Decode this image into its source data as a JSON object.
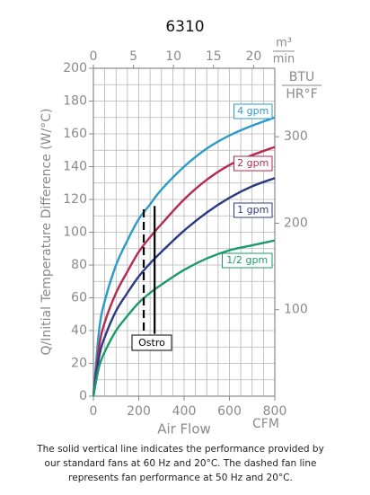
{
  "chart_data": {
    "type": "line",
    "title": "6310",
    "y_label": "Q/Initial Temperature Difference (W/°C)",
    "x_label": "Air Flow",
    "x_unit": "CFM",
    "x2_unit_top": "m³",
    "x2_unit_bottom": "min",
    "y2_unit_top": "BTU",
    "y2_unit_bottom": "HR°F",
    "x": [
      0,
      25,
      50,
      100,
      150,
      200,
      250,
      300,
      400,
      500,
      600,
      700,
      800
    ],
    "series": [
      {
        "name": "4 gpm",
        "color": "#2b9bc9",
        "values": [
          0,
          40,
          58,
          80,
          95,
          108,
          117,
          126,
          140,
          151,
          159,
          165,
          170
        ]
      },
      {
        "name": "2 gpm",
        "color": "#b62a50",
        "values": [
          0,
          30,
          45,
          63,
          76,
          88,
          97,
          105,
          120,
          132,
          141,
          147,
          152
        ]
      },
      {
        "name": "1 gpm",
        "color": "#2c3a86",
        "values": [
          0,
          24,
          36,
          52,
          63,
          73,
          81,
          88,
          101,
          112,
          121,
          128,
          133
        ]
      },
      {
        "name": "1/2 gpm",
        "color": "#1b9a6b",
        "values": [
          0,
          18,
          27,
          40,
          49,
          57,
          63,
          68,
          77,
          84,
          89,
          92,
          95
        ]
      }
    ],
    "xlim": [
      0,
      800
    ],
    "xticks": [
      0,
      200,
      400,
      600,
      800
    ],
    "ylim": [
      0,
      200
    ],
    "yticks": [
      0,
      20,
      40,
      60,
      80,
      100,
      120,
      140,
      160,
      180,
      200
    ],
    "x2lim": [
      0,
      22.65
    ],
    "x2ticks": [
      0,
      5,
      10,
      15,
      20
    ],
    "y2lim": [
      0,
      379.1
    ],
    "y2ticks": [
      100,
      200,
      300
    ],
    "xgrid": [
      0,
      50,
      100,
      150,
      200,
      250,
      300,
      350,
      400,
      450,
      500,
      550,
      600,
      650,
      700,
      750,
      800
    ],
    "ygrid": [
      0,
      10,
      20,
      30,
      40,
      50,
      60,
      70,
      80,
      90,
      100,
      110,
      120,
      130,
      140,
      150,
      160,
      170,
      180,
      190,
      200
    ],
    "reference_lines": [
      {
        "style": "dashed",
        "x": 222,
        "y": [
          40,
          116
        ]
      },
      {
        "style": "solid",
        "x": 270,
        "y": [
          38,
          116
        ]
      }
    ],
    "reference_label": "Ostro",
    "caption": [
      "The solid vertical line indicates the performance provided by",
      "our standard fans at 60 Hz and 20°C. The dashed fan line",
      "represents fan performance at 50 Hz and 20°C."
    ]
  }
}
